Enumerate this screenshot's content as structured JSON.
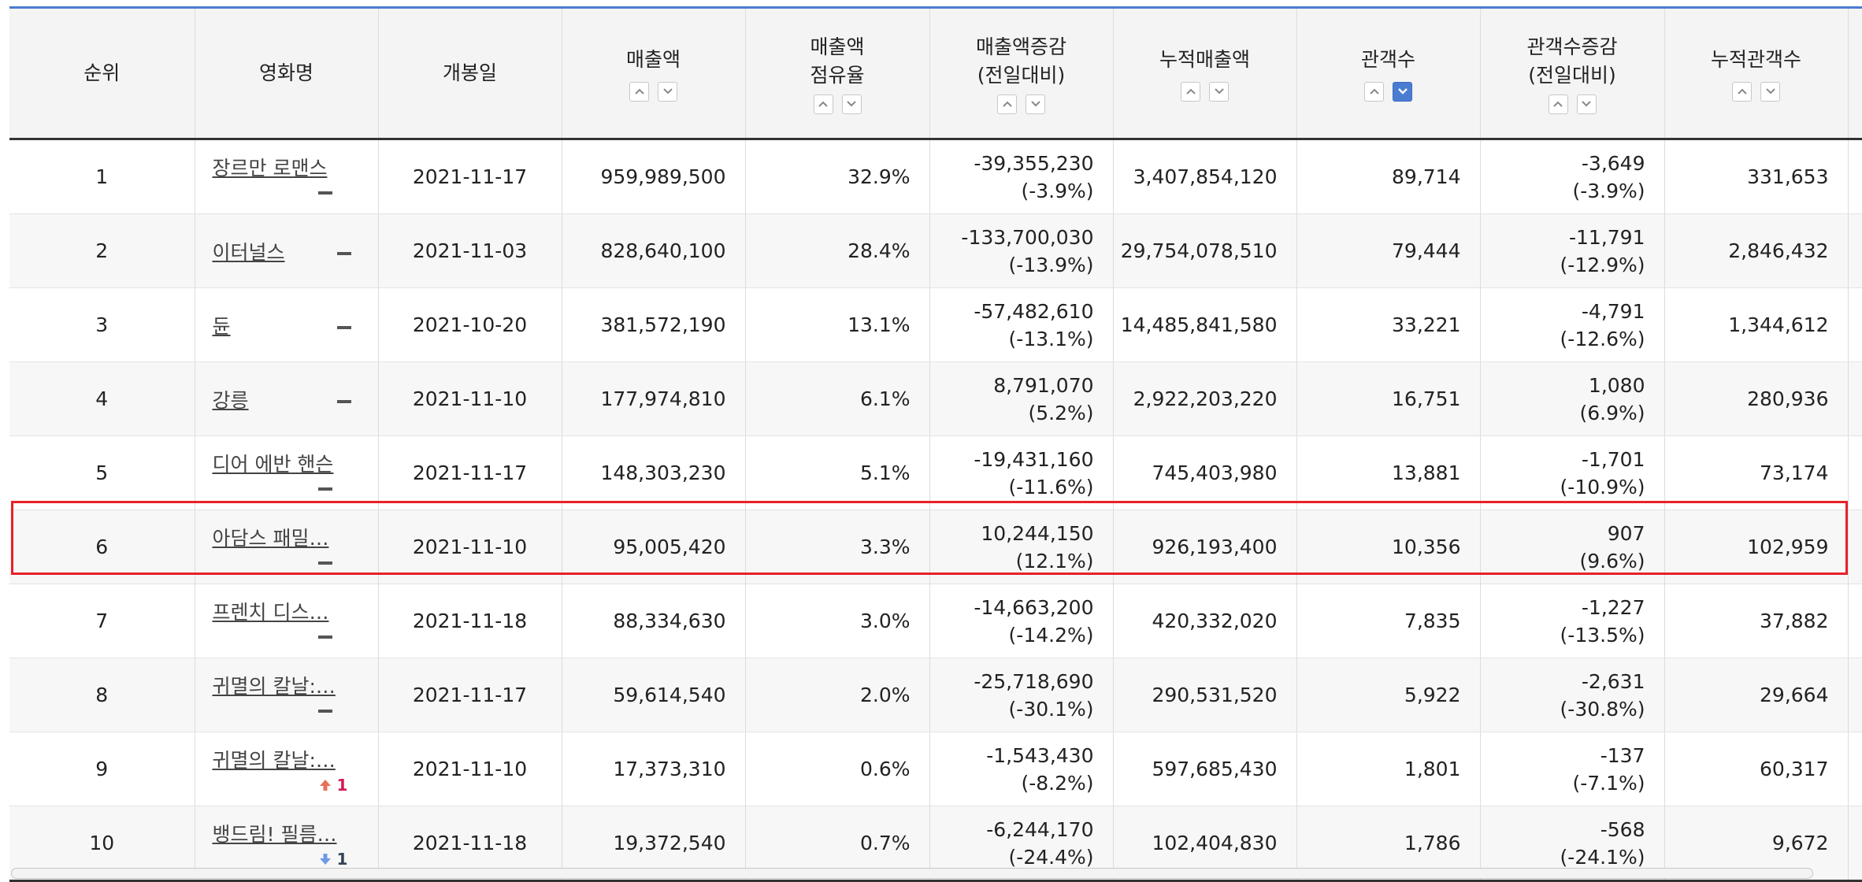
{
  "columns": {
    "rank": "순위",
    "title": "영화명",
    "release": "개봉일",
    "sales": "매출액",
    "share_l1": "매출액",
    "share_l2": "점유율",
    "sales_change_l1": "매출액증감",
    "sales_change_l2": "(전일대비)",
    "cum_sales": "누적매출액",
    "audience": "관객수",
    "aud_change_l1": "관객수증감",
    "aud_change_l2": "(전일대비)",
    "cum_audience": "누적관객수"
  },
  "active_sort": "audience-desc",
  "highlight_color": "#e8202a",
  "rows": [
    {
      "rank": "1",
      "title": "장르만 로맨스",
      "rank_change": "flat",
      "release": "2021-11-17",
      "sales": "959,989,500",
      "share": "32.9%",
      "sales_change": "-39,355,230",
      "sales_change_pct": "(-3.9%)",
      "cum_sales": "3,407,854,120",
      "audience": "89,714",
      "aud_change": "-3,649",
      "aud_change_pct": "(-3.9%)",
      "cum_audience": "331,653"
    },
    {
      "rank": "2",
      "title": "이터널스",
      "rank_change": "flat",
      "release": "2021-11-03",
      "sales": "828,640,100",
      "share": "28.4%",
      "sales_change": "-133,700,030",
      "sales_change_pct": "(-13.9%)",
      "cum_sales": "29,754,078,510",
      "audience": "79,444",
      "aud_change": "-11,791",
      "aud_change_pct": "(-12.9%)",
      "cum_audience": "2,846,432"
    },
    {
      "rank": "3",
      "title": "듄",
      "rank_change": "flat",
      "release": "2021-10-20",
      "sales": "381,572,190",
      "share": "13.1%",
      "sales_change": "-57,482,610",
      "sales_change_pct": "(-13.1%)",
      "cum_sales": "14,485,841,580",
      "audience": "33,221",
      "aud_change": "-4,791",
      "aud_change_pct": "(-12.6%)",
      "cum_audience": "1,344,612"
    },
    {
      "rank": "4",
      "title": "강릉",
      "rank_change": "flat",
      "release": "2021-11-10",
      "sales": "177,974,810",
      "share": "6.1%",
      "sales_change": "8,791,070",
      "sales_change_pct": "(5.2%)",
      "cum_sales": "2,922,203,220",
      "audience": "16,751",
      "aud_change": "1,080",
      "aud_change_pct": "(6.9%)",
      "cum_audience": "280,936"
    },
    {
      "rank": "5",
      "title": "디어 에반 핸슨",
      "rank_change": "flat",
      "release": "2021-11-17",
      "sales": "148,303,230",
      "share": "5.1%",
      "sales_change": "-19,431,160",
      "sales_change_pct": "(-11.6%)",
      "cum_sales": "745,403,980",
      "audience": "13,881",
      "aud_change": "-1,701",
      "aud_change_pct": "(-10.9%)",
      "cum_audience": "73,174"
    },
    {
      "rank": "6",
      "title": "아담스 패밀…",
      "rank_change": "flat",
      "release": "2021-11-10",
      "sales": "95,005,420",
      "share": "3.3%",
      "sales_change": "10,244,150",
      "sales_change_pct": "(12.1%)",
      "cum_sales": "926,193,400",
      "audience": "10,356",
      "aud_change": "907",
      "aud_change_pct": "(9.6%)",
      "cum_audience": "102,959"
    },
    {
      "rank": "7",
      "title": "프렌치 디스…",
      "rank_change": "flat",
      "release": "2021-11-18",
      "sales": "88,334,630",
      "share": "3.0%",
      "sales_change": "-14,663,200",
      "sales_change_pct": "(-14.2%)",
      "cum_sales": "420,332,020",
      "audience": "7,835",
      "aud_change": "-1,227",
      "aud_change_pct": "(-13.5%)",
      "cum_audience": "37,882"
    },
    {
      "rank": "8",
      "title": "귀멸의 칼날:…",
      "rank_change": "flat",
      "release": "2021-11-17",
      "sales": "59,614,540",
      "share": "2.0%",
      "sales_change": "-25,718,690",
      "sales_change_pct": "(-30.1%)",
      "cum_sales": "290,531,520",
      "audience": "5,922",
      "aud_change": "-2,631",
      "aud_change_pct": "(-30.8%)",
      "cum_audience": "29,664"
    },
    {
      "rank": "9",
      "title": "귀멸의 칼날:…",
      "rank_change": "up",
      "rank_change_value": "1",
      "release": "2021-11-10",
      "sales": "17,373,310",
      "share": "0.6%",
      "sales_change": "-1,543,430",
      "sales_change_pct": "(-8.2%)",
      "cum_sales": "597,685,430",
      "audience": "1,801",
      "aud_change": "-137",
      "aud_change_pct": "(-7.1%)",
      "cum_audience": "60,317"
    },
    {
      "rank": "10",
      "title": "뱅드림! 필름…",
      "rank_change": "down",
      "rank_change_value": "1",
      "release": "2021-11-18",
      "sales": "19,372,540",
      "share": "0.7%",
      "sales_change": "-6,244,170",
      "sales_change_pct": "(-24.4%)",
      "cum_sales": "102,404,830",
      "audience": "1,786",
      "aud_change": "-568",
      "aud_change_pct": "(-24.1%)",
      "cum_audience": "9,672"
    }
  ]
}
